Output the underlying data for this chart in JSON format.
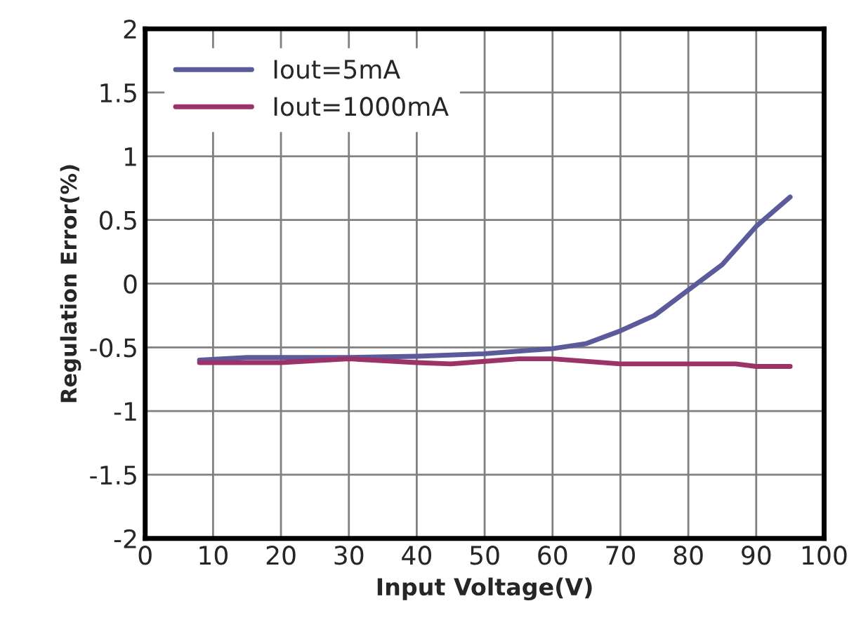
{
  "chart_data": {
    "type": "line",
    "xlabel": "Input Voltage(V)",
    "ylabel": "Regulation Error(%)",
    "xlim": [
      0,
      100
    ],
    "xticks": [
      0,
      10,
      20,
      30,
      40,
      50,
      60,
      70,
      80,
      90,
      100
    ],
    "ylim": [
      -2,
      2
    ],
    "yticks": [
      {
        "value": -2,
        "label": "-2"
      },
      {
        "value": -1.5,
        "label": "-1.5"
      },
      {
        "value": -1,
        "label": "-1"
      },
      {
        "value": -0.5,
        "label": "-0.5"
      },
      0,
      0.5,
      1,
      1.5,
      2
    ],
    "grid": true,
    "legend": "top left",
    "marker": "none",
    "line_style": "solid",
    "series": [
      {
        "name": "Iout=5mA",
        "color": "#5b5b9b",
        "x": [
          8,
          15,
          30,
          40,
          50,
          60,
          65,
          70,
          75,
          80,
          85,
          90,
          95
        ],
        "values": [
          -0.6,
          -0.58,
          -0.58,
          -0.57,
          -0.55,
          -0.51,
          -0.47,
          -0.37,
          -0.25,
          -0.05,
          0.15,
          0.45,
          0.68
        ]
      },
      {
        "name": "Iout=1000mA",
        "color": "#9b3368",
        "x": [
          8,
          20,
          30,
          40,
          45,
          50,
          55,
          60,
          70,
          80,
          87,
          90,
          95
        ],
        "values": [
          -0.62,
          -0.62,
          -0.59,
          -0.62,
          -0.63,
          -0.61,
          -0.59,
          -0.59,
          -0.63,
          -0.63,
          -0.63,
          -0.65,
          -0.65
        ]
      }
    ]
  }
}
